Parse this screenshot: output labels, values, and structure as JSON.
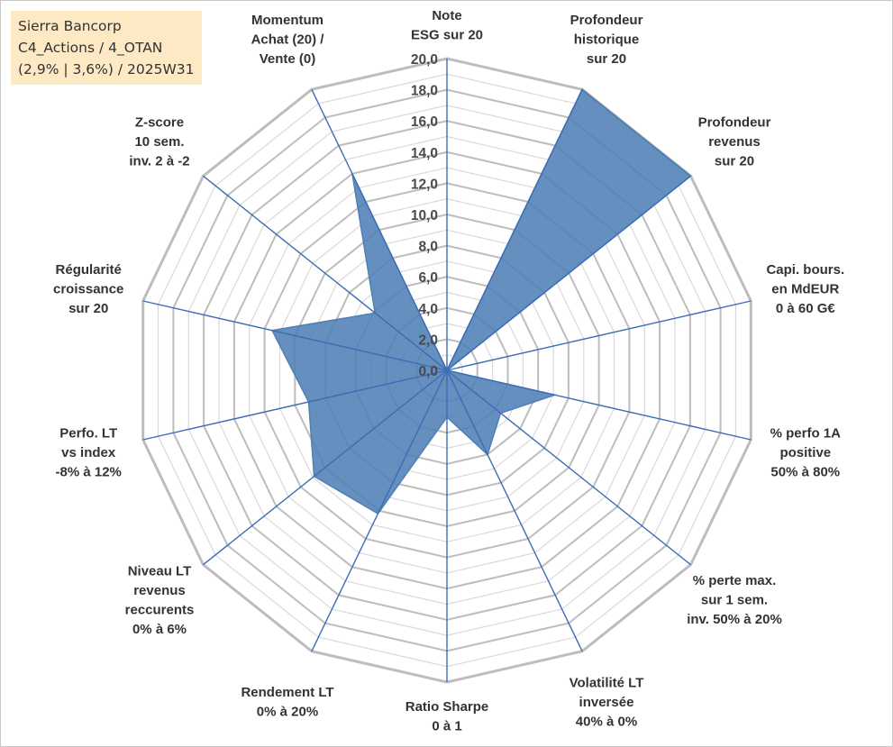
{
  "info": {
    "line1": "Sierra Bancorp",
    "line2": "C4_Actions / 4_OTAN",
    "line3": "(2,9% | 3,6%) / 2025W31"
  },
  "colors": {
    "fill": "#4f7fb5",
    "spoke": "#3c6cb4",
    "grid_major": "#bdbdbd",
    "grid_minor": "#d9d9d9",
    "info_bg": "#fde9c4"
  },
  "chart_data": {
    "type": "radar",
    "title": "",
    "rmin": 0,
    "rmax": 20,
    "ticks": [
      "0,0",
      "2,0",
      "4,0",
      "6,0",
      "8,0",
      "10,0",
      "12,0",
      "14,0",
      "16,0",
      "18,0",
      "20,0"
    ],
    "grid": true,
    "categories": [
      [
        "Note",
        "ESG sur 20"
      ],
      [
        "Profondeur",
        "historique",
        "sur 20"
      ],
      [
        "Profondeur",
        "revenus",
        "sur 20"
      ],
      [
        "Capi. bours.",
        "en MdEUR",
        "0 à 60 G€"
      ],
      [
        "% perfo 1A",
        "positive",
        "50% à 80%"
      ],
      [
        "% perte max.",
        "sur 1 sem.",
        "inv. 50% à 20%"
      ],
      [
        "Volatilité LT",
        "inversée",
        "40% à 0%"
      ],
      [
        "Ratio Sharpe",
        "0 à 1"
      ],
      [
        "Rendement LT",
        "0% à 20%"
      ],
      [
        "Niveau LT",
        "revenus",
        "reccurents",
        "0% à 6%"
      ],
      [
        "Perfo. LT",
        "vs index",
        "-8% à 12%"
      ],
      [
        "Régularité",
        "croissance",
        "sur 20"
      ],
      [
        "Z-score",
        "10 sem.",
        "inv. 2 à -2"
      ],
      [
        "Momentum",
        "Achat (20) /",
        "Vente (0)"
      ]
    ],
    "series": [
      {
        "values": [
          0.0,
          20.0,
          20.0,
          0.0,
          7.1,
          4.4,
          6.0,
          3.0,
          10.2,
          10.9,
          9.1,
          11.5,
          5.9,
          14.0
        ]
      }
    ]
  }
}
